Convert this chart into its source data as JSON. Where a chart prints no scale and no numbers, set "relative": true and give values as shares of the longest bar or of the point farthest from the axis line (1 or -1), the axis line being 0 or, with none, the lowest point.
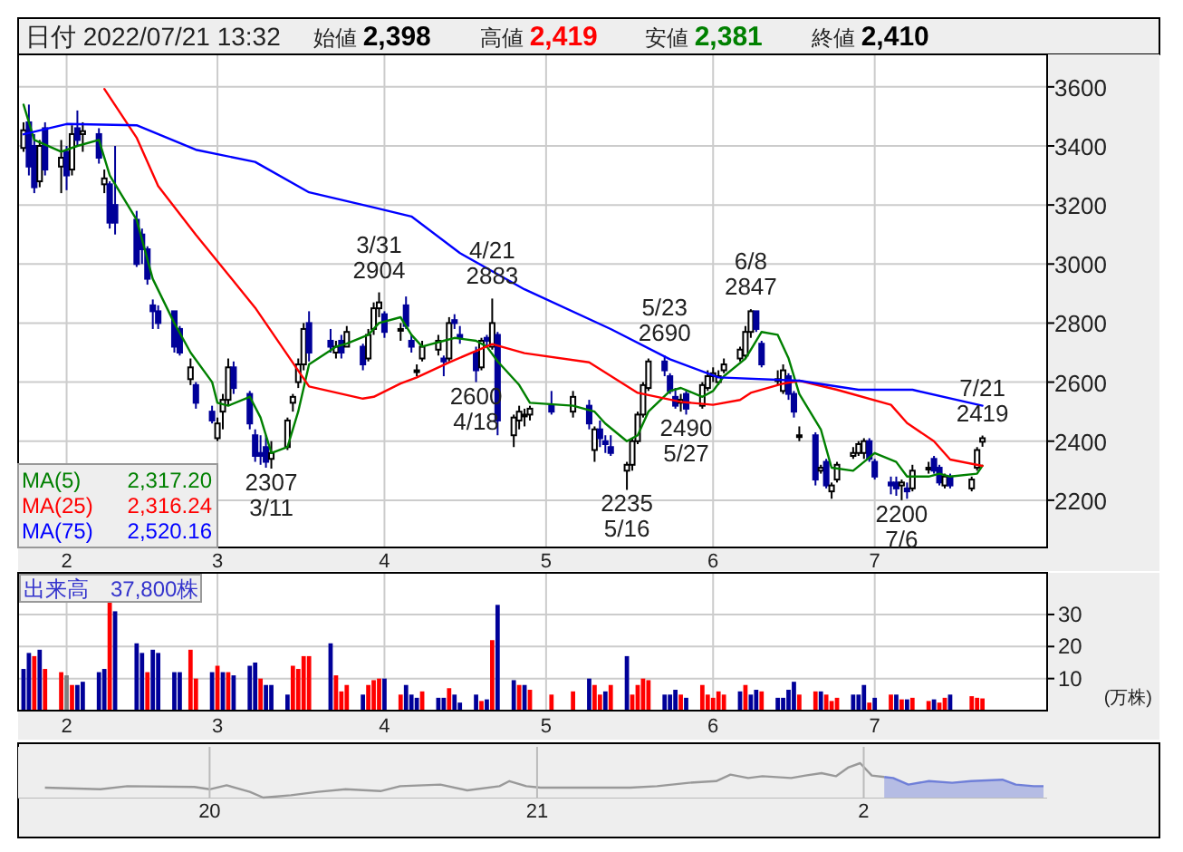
{
  "chart_data": [
    {
      "type": "candlestick",
      "title": "日付 2022/07/21 13:32",
      "grid": true,
      "colors": [
        "#ffffff",
        "#000099",
        "#000099",
        "#ffffff",
        "#000099",
        "#ffffff",
        "#000099",
        "#ffffff",
        "#000099",
        "#ffffff",
        "#000099",
        "#ffffff",
        "#000099",
        "#000099",
        "#000099",
        "#000099",
        "#000099",
        "#000099",
        "#000099",
        "#000099",
        "#000099",
        "#ffffff",
        "#000099",
        "#000099",
        "#ffffff",
        "#ffffff",
        "#ffffff",
        "#000099",
        "#000099",
        "#000099",
        "#000099",
        "#000099",
        "#ffffff",
        "#ffffff",
        "#ffffff",
        "#ffffff",
        "#ffffff",
        "#000099",
        "#000099",
        "#ffffff",
        "#000099",
        "#ffffff",
        "#000099",
        "#ffffff",
        "#ffffff",
        "#ffffff",
        "#000099",
        "#ffffff",
        "#000099",
        "#000099",
        "#ffffff",
        "#ffffff",
        "#ffffff",
        "#000099",
        "#ffffff",
        "#000099",
        "#000099",
        "#000099",
        "#ffffff",
        "#000099",
        "#ffffff",
        "#000099",
        "#ffffff",
        "#ffffff",
        "#ffffff",
        "#ffffff",
        "#000099",
        "#ffffff",
        "#000099",
        "#ffffff",
        "#000099",
        "#000099",
        "#000099",
        "#ffffff",
        "#ffffff",
        "#ffffff",
        "#ffffff",
        "#ffffff",
        "#000099",
        "#000099",
        "#000099",
        "#ffffff",
        "#000099",
        "#ffffff",
        "#ffffff",
        "#ffffff",
        "#ffffff",
        "#ffffff",
        "#ffffff",
        "#ffffff",
        "#ffffff",
        "#000099",
        "#000099",
        "#ffffff",
        "#ffffff",
        "#000099",
        "#000099",
        "#ffffff",
        "#000099",
        "#ffffff",
        "#000099",
        "#ffffff",
        "#ffffff",
        "#ffffff",
        "#ffffff",
        "#ffffff",
        "#000099",
        "#000099",
        "#000099",
        "#000099",
        "#ffffff",
        "#000099",
        "#ffffff",
        "#ffffff",
        "#000099",
        "#000099",
        "#ffffff",
        "#000099",
        "#ffffff",
        "#ffffff",
        "#ffffff"
      ],
      "legend": "bottom left",
      "xlim": [
        "2022-01-23",
        "2022-08-02"
      ],
      "ylim": [
        2040,
        3710
      ],
      "yticks": [
        2200,
        2400,
        2600,
        2800,
        3000,
        3200,
        3400,
        3600
      ],
      "xticks": [
        {
          "value": "2022-02-01",
          "label": "2"
        },
        {
          "value": "2022-03-01",
          "label": "3"
        },
        {
          "value": "2022-04-01",
          "label": "4"
        },
        {
          "value": "2022-05-01",
          "label": "5"
        },
        {
          "value": "2022-06-01",
          "label": "6"
        },
        {
          "value": "2022-07-01",
          "label": "7"
        }
      ],
      "x": [
        "2022-01-24",
        "2022-01-25",
        "2022-01-26",
        "2022-01-27",
        "2022-01-28",
        "2022-01-31",
        "2022-02-01",
        "2022-02-02",
        "2022-02-03",
        "2022-02-04",
        "2022-02-07",
        "2022-02-08",
        "2022-02-09",
        "2022-02-10",
        "2022-02-14",
        "2022-02-15",
        "2022-02-16",
        "2022-02-17",
        "2022-02-18",
        "2022-02-21",
        "2022-02-22",
        "2022-02-24",
        "2022-02-25",
        "2022-02-28",
        "2022-03-01",
        "2022-03-02",
        "2022-03-03",
        "2022-03-04",
        "2022-03-07",
        "2022-03-08",
        "2022-03-09",
        "2022-03-10",
        "2022-03-11",
        "2022-03-14",
        "2022-03-15",
        "2022-03-16",
        "2022-03-17",
        "2022-03-18",
        "2022-03-22",
        "2022-03-23",
        "2022-03-24",
        "2022-03-25",
        "2022-03-28",
        "2022-03-29",
        "2022-03-30",
        "2022-03-31",
        "2022-04-01",
        "2022-04-04",
        "2022-04-05",
        "2022-04-06",
        "2022-04-07",
        "2022-04-08",
        "2022-04-11",
        "2022-04-12",
        "2022-04-13",
        "2022-04-14",
        "2022-04-15",
        "2022-04-18",
        "2022-04-19",
        "2022-04-20",
        "2022-04-21",
        "2022-04-22",
        "2022-04-25",
        "2022-04-26",
        "2022-04-27",
        "2022-04-28",
        "2022-05-02",
        "2022-05-06",
        "2022-05-09",
        "2022-05-10",
        "2022-05-11",
        "2022-05-12",
        "2022-05-13",
        "2022-05-16",
        "2022-05-17",
        "2022-05-18",
        "2022-05-19",
        "2022-05-20",
        "2022-05-23",
        "2022-05-24",
        "2022-05-25",
        "2022-05-26",
        "2022-05-27",
        "2022-05-30",
        "2022-05-31",
        "2022-06-01",
        "2022-06-02",
        "2022-06-03",
        "2022-06-06",
        "2022-06-07",
        "2022-06-08",
        "2022-06-09",
        "2022-06-10",
        "2022-06-13",
        "2022-06-14",
        "2022-06-15",
        "2022-06-16",
        "2022-06-17",
        "2022-06-20",
        "2022-06-21",
        "2022-06-22",
        "2022-06-23",
        "2022-06-24",
        "2022-06-27",
        "2022-06-28",
        "2022-06-29",
        "2022-06-30",
        "2022-07-01",
        "2022-07-04",
        "2022-07-05",
        "2022-07-06",
        "2022-07-07",
        "2022-07-08",
        "2022-07-11",
        "2022-07-12",
        "2022-07-13",
        "2022-07-14",
        "2022-07-15",
        "2022-07-19",
        "2022-07-20",
        "2022-07-21"
      ],
      "ohlc": [
        [
          3393,
          3480,
          3380,
          3453
        ],
        [
          3480,
          3540,
          3300,
          3330
        ],
        [
          3400,
          3440,
          3240,
          3260
        ],
        [
          3280,
          3420,
          3260,
          3400
        ],
        [
          3460,
          3480,
          3300,
          3320
        ],
        [
          3330,
          3420,
          3240,
          3360
        ],
        [
          3380,
          3400,
          3250,
          3300
        ],
        [
          3320,
          3470,
          3300,
          3440
        ],
        [
          3460,
          3520,
          3400,
          3420
        ],
        [
          3440,
          3480,
          3380,
          3450
        ],
        [
          3440,
          3460,
          3340,
          3360
        ],
        [
          3270,
          3320,
          3240,
          3290
        ],
        [
          3270,
          3280,
          3120,
          3140
        ],
        [
          3200,
          3400,
          3100,
          3140
        ],
        [
          3150,
          3180,
          2990,
          3000
        ],
        [
          3100,
          3120,
          3000,
          3050
        ],
        [
          3050,
          3060,
          2930,
          2950
        ],
        [
          2860,
          2880,
          2780,
          2840
        ],
        [
          2840,
          2860,
          2780,
          2800
        ],
        [
          2840,
          2840,
          2700,
          2720
        ],
        [
          2780,
          2790,
          2690,
          2700
        ],
        [
          2610,
          2680,
          2590,
          2650
        ],
        [
          2590,
          2600,
          2510,
          2530
        ],
        [
          2500,
          2520,
          2460,
          2470
        ],
        [
          2410,
          2480,
          2400,
          2460
        ],
        [
          2500,
          2560,
          2440,
          2540
        ],
        [
          2540,
          2680,
          2520,
          2650
        ],
        [
          2650,
          2670,
          2560,
          2580
        ],
        [
          2560,
          2570,
          2440,
          2460
        ],
        [
          2420,
          2440,
          2330,
          2350
        ],
        [
          2360,
          2420,
          2320,
          2350
        ],
        [
          2380,
          2420,
          2310,
          2330
        ],
        [
          2340,
          2400,
          2307,
          2360
        ],
        [
          2380,
          2480,
          2370,
          2470
        ],
        [
          2530,
          2560,
          2500,
          2550
        ],
        [
          2600,
          2680,
          2580,
          2660
        ],
        [
          2660,
          2800,
          2640,
          2780
        ],
        [
          2800,
          2840,
          2670,
          2700
        ],
        [
          2740,
          2780,
          2700,
          2720
        ],
        [
          2700,
          2740,
          2680,
          2720
        ],
        [
          2740,
          2760,
          2680,
          2700
        ],
        [
          2720,
          2790,
          2720,
          2770
        ],
        [
          2720,
          2730,
          2640,
          2660
        ],
        [
          2680,
          2780,
          2670,
          2760
        ],
        [
          2780,
          2870,
          2760,
          2850
        ],
        [
          2850,
          2904,
          2820,
          2870
        ],
        [
          2830,
          2840,
          2750,
          2770
        ],
        [
          2780,
          2800,
          2740,
          2780
        ],
        [
          2860,
          2890,
          2780,
          2790
        ],
        [
          2740,
          2760,
          2700,
          2720
        ],
        [
          2640,
          2660,
          2620,
          2640
        ],
        [
          2680,
          2740,
          2670,
          2720
        ],
        [
          2710,
          2760,
          2690,
          2740
        ],
        [
          2680,
          2690,
          2620,
          2670
        ],
        [
          2680,
          2820,
          2670,
          2800
        ],
        [
          2810,
          2830,
          2780,
          2800
        ],
        [
          2760,
          2790,
          2730,
          2750
        ],
        [
          2700,
          2720,
          2600,
          2640
        ],
        [
          2650,
          2750,
          2640,
          2740
        ],
        [
          2750,
          2760,
          2720,
          2740
        ],
        [
          2720,
          2883,
          2710,
          2800
        ],
        [
          2760,
          2770,
          2420,
          2470
        ],
        [
          2420,
          2490,
          2380,
          2480
        ],
        [
          2470,
          2520,
          2440,
          2500
        ],
        [
          2490,
          2510,
          2450,
          2490
        ],
        [
          2490,
          2520,
          2470,
          2510
        ],
        [
          2520,
          2570,
          2490,
          2500
        ],
        [
          2500,
          2570,
          2480,
          2550
        ],
        [
          2520,
          2540,
          2440,
          2460
        ],
        [
          2370,
          2450,
          2330,
          2440
        ],
        [
          2440,
          2470,
          2380,
          2410
        ],
        [
          2400,
          2420,
          2360,
          2390
        ],
        [
          2380,
          2420,
          2350,
          2360
        ],
        [
          2300,
          2330,
          2235,
          2320
        ],
        [
          2320,
          2410,
          2300,
          2400
        ],
        [
          2400,
          2500,
          2390,
          2490
        ],
        [
          2490,
          2600,
          2480,
          2590
        ],
        [
          2580,
          2680,
          2570,
          2670
        ],
        [
          2670,
          2690,
          2620,
          2640
        ],
        [
          2620,
          2630,
          2560,
          2570
        ],
        [
          2550,
          2580,
          2510,
          2520
        ],
        [
          2530,
          2560,
          2500,
          2540
        ],
        [
          2560,
          2570,
          2490,
          2510
        ],
        [
          2520,
          2600,
          2510,
          2590
        ],
        [
          2580,
          2640,
          2570,
          2620
        ],
        [
          2620,
          2650,
          2600,
          2630
        ],
        [
          2600,
          2640,
          2590,
          2620
        ],
        [
          2640,
          2680,
          2630,
          2660
        ],
        [
          2680,
          2720,
          2670,
          2710
        ],
        [
          2690,
          2790,
          2680,
          2770
        ],
        [
          2770,
          2847,
          2750,
          2840
        ],
        [
          2840,
          2840,
          2770,
          2780
        ],
        [
          2730,
          2740,
          2650,
          2660
        ],
        [
          2610,
          2640,
          2590,
          2610
        ],
        [
          2570,
          2660,
          2560,
          2640
        ],
        [
          2620,
          2630,
          2540,
          2560
        ],
        [
          2560,
          2570,
          2480,
          2500
        ],
        [
          2420,
          2450,
          2400,
          2420
        ],
        [
          2420,
          2430,
          2250,
          2270
        ],
        [
          2300,
          2320,
          2290,
          2310
        ],
        [
          2330,
          2340,
          2240,
          2250
        ],
        [
          2230,
          2260,
          2205,
          2250
        ],
        [
          2270,
          2330,
          2260,
          2320
        ],
        [
          2350,
          2380,
          2340,
          2360
        ],
        [
          2360,
          2400,
          2350,
          2390
        ],
        [
          2360,
          2410,
          2340,
          2400
        ],
        [
          2400,
          2410,
          2330,
          2340
        ],
        [
          2330,
          2340,
          2270,
          2280
        ],
        [
          2260,
          2280,
          2220,
          2250
        ],
        [
          2260,
          2280,
          2215,
          2240
        ],
        [
          2250,
          2270,
          2200,
          2260
        ],
        [
          2240,
          2260,
          2205,
          2230
        ],
        [
          2240,
          2320,
          2230,
          2300
        ],
        [
          2310,
          2330,
          2290,
          2310
        ],
        [
          2340,
          2350,
          2290,
          2300
        ],
        [
          2310,
          2320,
          2250,
          2260
        ],
        [
          2250,
          2290,
          2240,
          2280
        ],
        [
          2280,
          2290,
          2240,
          2250
        ],
        [
          2240,
          2280,
          2230,
          2270
        ],
        [
          2310,
          2380,
          2300,
          2370
        ],
        [
          2398,
          2419,
          2381,
          2410
        ]
      ],
      "series": [
        {
          "name": "MA(5)",
          "type": "line",
          "color": "#008000",
          "x": [
            "2022-01-24",
            "2022-01-26",
            "2022-01-31",
            "2022-02-03",
            "2022-02-07",
            "2022-02-09",
            "2022-02-14",
            "2022-02-17",
            "2022-02-21",
            "2022-02-24",
            "2022-02-28",
            "2022-03-01",
            "2022-03-03",
            "2022-03-07",
            "2022-03-09",
            "2022-03-11",
            "2022-03-14",
            "2022-03-16",
            "2022-03-18",
            "2022-03-23",
            "2022-03-25",
            "2022-03-29",
            "2022-03-31",
            "2022-04-04",
            "2022-04-06",
            "2022-04-08",
            "2022-04-12",
            "2022-04-14",
            "2022-04-18",
            "2022-04-20",
            "2022-04-22",
            "2022-04-26",
            "2022-04-28",
            "2022-05-06",
            "2022-05-10",
            "2022-05-12",
            "2022-05-16",
            "2022-05-18",
            "2022-05-20",
            "2022-05-24",
            "2022-05-26",
            "2022-05-30",
            "2022-06-01",
            "2022-06-03",
            "2022-06-07",
            "2022-06-10",
            "2022-06-13",
            "2022-06-15",
            "2022-06-17",
            "2022-06-21",
            "2022-06-23",
            "2022-06-27",
            "2022-06-29",
            "2022-07-01",
            "2022-07-05",
            "2022-07-07",
            "2022-07-11",
            "2022-07-13",
            "2022-07-15",
            "2022-07-20",
            "2022-07-21"
          ],
          "values": [
            3540,
            3420,
            3380,
            3400,
            3420,
            3300,
            3150,
            2950,
            2800,
            2700,
            2600,
            2530,
            2520,
            2550,
            2480,
            2360,
            2380,
            2500,
            2660,
            2720,
            2730,
            2760,
            2800,
            2820,
            2760,
            2720,
            2740,
            2750,
            2740,
            2720,
            2670,
            2590,
            2530,
            2520,
            2500,
            2460,
            2400,
            2420,
            2500,
            2570,
            2580,
            2550,
            2570,
            2620,
            2680,
            2770,
            2760,
            2680,
            2560,
            2440,
            2310,
            2300,
            2330,
            2360,
            2330,
            2280,
            2280,
            2290,
            2280,
            2290,
            2317
          ]
        },
        {
          "name": "MA(25)",
          "type": "line",
          "color": "#ff0000",
          "x": [
            "2022-02-08",
            "2022-02-14",
            "2022-02-18",
            "2022-02-25",
            "2022-03-08",
            "2022-03-18",
            "2022-03-28",
            "2022-03-30",
            "2022-04-04",
            "2022-04-07",
            "2022-04-13",
            "2022-04-21",
            "2022-04-27",
            "2022-05-09",
            "2022-05-18",
            "2022-05-26",
            "2022-06-01",
            "2022-06-06",
            "2022-06-08",
            "2022-06-14",
            "2022-06-17",
            "2022-06-24",
            "2022-07-04",
            "2022-07-07",
            "2022-07-12",
            "2022-07-15",
            "2022-07-21"
          ],
          "values": [
            3593,
            3428,
            3264,
            3099,
            2852,
            2585,
            2544,
            2550,
            2595,
            2616,
            2667,
            2729,
            2698,
            2667,
            2564,
            2533,
            2523,
            2540,
            2564,
            2595,
            2605,
            2574,
            2523,
            2461,
            2400,
            2338,
            2316
          ]
        },
        {
          "name": "MA(75)",
          "type": "line",
          "color": "#0000ff",
          "x": [
            "2022-01-24",
            "2022-02-01",
            "2022-02-14",
            "2022-02-25",
            "2022-03-08",
            "2022-03-18",
            "2022-03-30",
            "2022-04-06",
            "2022-04-15",
            "2022-04-27",
            "2022-05-13",
            "2022-05-24",
            "2022-06-02",
            "2022-06-17",
            "2022-06-28",
            "2022-07-08",
            "2022-07-21"
          ],
          "values": [
            3439,
            3474,
            3470,
            3387,
            3346,
            3243,
            3192,
            3161,
            3037,
            2914,
            2780,
            2677,
            2616,
            2605,
            2574,
            2574,
            2520
          ]
        }
      ],
      "annotations": [
        "始値 2,398",
        "高値 2,419",
        "安値 2,381",
        "終値 2,410",
        "2,317.20",
        "2,316.24",
        "2,520.16",
        {
          "text": "2307\n3/11",
          "x": "2022-03-11",
          "y": 2307
        },
        {
          "text": "3/31\n2904",
          "x": "2022-03-31",
          "y": 2904
        },
        {
          "text": "2600\n4/18",
          "x": "2022-04-18",
          "y": 2600
        },
        {
          "text": "4/21\n2883",
          "x": "2022-04-21",
          "y": 2883
        },
        {
          "text": "2235\n5/16",
          "x": "2022-05-16",
          "y": 2235
        },
        {
          "text": "5/23\n2690",
          "x": "2022-05-23",
          "y": 2690
        },
        {
          "text": "2490\n5/27",
          "x": "2022-05-27",
          "y": 2490
        },
        {
          "text": "6/8\n2847",
          "x": "2022-06-08",
          "y": 2847
        },
        {
          "text": "2200\n7/6",
          "x": "2022-07-06",
          "y": 2200
        },
        {
          "text": "7/21\n2419",
          "x": "2022-07-21",
          "y": 2419
        }
      ]
    },
    {
      "type": "bar",
      "title": "出来高　37,800株",
      "ylabel": "(万株)",
      "grid": true,
      "ylim": [
        0,
        43
      ],
      "yticks": [
        10,
        20,
        30
      ],
      "xlim": [
        "2022-01-23",
        "2022-08-02"
      ],
      "xticks": [
        {
          "value": "2022-02-01",
          "label": "2"
        },
        {
          "value": "2022-03-01",
          "label": "3"
        },
        {
          "value": "2022-04-01",
          "label": "4"
        },
        {
          "value": "2022-05-01",
          "label": "5"
        },
        {
          "value": "2022-06-01",
          "label": "6"
        },
        {
          "value": "2022-07-01",
          "label": "7"
        }
      ],
      "x": [
        "2022-01-24",
        "2022-01-25",
        "2022-01-26",
        "2022-01-27",
        "2022-01-28",
        "2022-01-31",
        "2022-02-01",
        "2022-02-02",
        "2022-02-03",
        "2022-02-04",
        "2022-02-07",
        "2022-02-08",
        "2022-02-09",
        "2022-02-10",
        "2022-02-14",
        "2022-02-15",
        "2022-02-16",
        "2022-02-17",
        "2022-02-18",
        "2022-02-21",
        "2022-02-22",
        "2022-02-24",
        "2022-02-25",
        "2022-02-28",
        "2022-03-01",
        "2022-03-02",
        "2022-03-03",
        "2022-03-04",
        "2022-03-07",
        "2022-03-08",
        "2022-03-09",
        "2022-03-10",
        "2022-03-11",
        "2022-03-14",
        "2022-03-15",
        "2022-03-16",
        "2022-03-17",
        "2022-03-18",
        "2022-03-22",
        "2022-03-23",
        "2022-03-24",
        "2022-03-25",
        "2022-03-28",
        "2022-03-29",
        "2022-03-30",
        "2022-03-31",
        "2022-04-01",
        "2022-04-04",
        "2022-04-05",
        "2022-04-06",
        "2022-04-07",
        "2022-04-08",
        "2022-04-11",
        "2022-04-12",
        "2022-04-13",
        "2022-04-14",
        "2022-04-15",
        "2022-04-18",
        "2022-04-19",
        "2022-04-20",
        "2022-04-21",
        "2022-04-22",
        "2022-04-25",
        "2022-04-26",
        "2022-04-27",
        "2022-04-28",
        "2022-05-02",
        "2022-05-06",
        "2022-05-09",
        "2022-05-10",
        "2022-05-11",
        "2022-05-12",
        "2022-05-13",
        "2022-05-16",
        "2022-05-17",
        "2022-05-18",
        "2022-05-19",
        "2022-05-20",
        "2022-05-23",
        "2022-05-24",
        "2022-05-25",
        "2022-05-26",
        "2022-05-27",
        "2022-05-30",
        "2022-05-31",
        "2022-06-01",
        "2022-06-02",
        "2022-06-03",
        "2022-06-06",
        "2022-06-07",
        "2022-06-08",
        "2022-06-09",
        "2022-06-10",
        "2022-06-13",
        "2022-06-14",
        "2022-06-15",
        "2022-06-16",
        "2022-06-17",
        "2022-06-20",
        "2022-06-21",
        "2022-06-22",
        "2022-06-23",
        "2022-06-24",
        "2022-06-27",
        "2022-06-28",
        "2022-06-29",
        "2022-06-30",
        "2022-07-01",
        "2022-07-04",
        "2022-07-05",
        "2022-07-06",
        "2022-07-07",
        "2022-07-08",
        "2022-07-11",
        "2022-07-12",
        "2022-07-13",
        "2022-07-14",
        "2022-07-15",
        "2022-07-19",
        "2022-07-20",
        "2022-07-21"
      ],
      "values": [
        13,
        18,
        17,
        19,
        13,
        12,
        11,
        8,
        8,
        9,
        12,
        13,
        35,
        31,
        21,
        18,
        12,
        19,
        18,
        12,
        12,
        19,
        10,
        12,
        14,
        12,
        12,
        11,
        14,
        15,
        10,
        8,
        8,
        5,
        14,
        13,
        17,
        17,
        21,
        11,
        6,
        8,
        5,
        8,
        9.5,
        10,
        10,
        5,
        8,
        5,
        4,
        6,
        4,
        4,
        7,
        5,
        2.5,
        5,
        3,
        3.5,
        22,
        33,
        9.5,
        8,
        8,
        6.5,
        5,
        6,
        10,
        8,
        5,
        6,
        8,
        17,
        5,
        8,
        10,
        9.5,
        5,
        5,
        6.5,
        5,
        4,
        8,
        5,
        4,
        6,
        5,
        6,
        8,
        5,
        6.5,
        6,
        4,
        4,
        6.5,
        9,
        5,
        6,
        6,
        5,
        3,
        4,
        5,
        5,
        8,
        2.5,
        4,
        5,
        5,
        3.5,
        3.5,
        4,
        3,
        3.5,
        2.5,
        4,
        5,
        4.5,
        4,
        3.8
      ],
      "colors": [
        "#000099",
        "#000099",
        "#ff0000",
        "#000099",
        "#ff0000",
        "#ff0000",
        "#808080",
        "#ff0000",
        "#000099",
        "#000099",
        "#000099",
        "#000099",
        "#ff0000",
        "#000099",
        "#000099",
        "#000099",
        "#ff0000",
        "#000099",
        "#000099",
        "#000099",
        "#000099",
        "#ff0000",
        "#ff0000",
        "#000099",
        "#ff0000",
        "#000099",
        "#ff0000",
        "#000099",
        "#000099",
        "#000099",
        "#ff0000",
        "#000099",
        "#000099",
        "#000099",
        "#ff0000",
        "#ff0000",
        "#ff0000",
        "#ff0000",
        "#000099",
        "#ff0000",
        "#ff0000",
        "#ff0000",
        "#000099",
        "#ff0000",
        "#ff0000",
        "#ff0000",
        "#000099",
        "#ff0000",
        "#000099",
        "#000099",
        "#000099",
        "#ff0000",
        "#000099",
        "#000099",
        "#ff0000",
        "#000099",
        "#000099",
        "#000099",
        "#ff0000",
        "#000099",
        "#ff0000",
        "#000099",
        "#000099",
        "#ff0000",
        "#000099",
        "#ff0000",
        "#ff0000",
        "#ff0000",
        "#000099",
        "#ff0000",
        "#ff0000",
        "#000099",
        "#ff0000",
        "#000099",
        "#ff0000",
        "#ff0000",
        "#ff0000",
        "#ff0000",
        "#000099",
        "#000099",
        "#000099",
        "#ff0000",
        "#000099",
        "#ff0000",
        "#ff0000",
        "#ff0000",
        "#ff0000",
        "#ff0000",
        "#000099",
        "#ff0000",
        "#000099",
        "#000099",
        "#ff0000",
        "#000099",
        "#000099",
        "#000099",
        "#000099",
        "#ff0000",
        "#ff0000",
        "#000099",
        "#ff0000",
        "#ff0000",
        "#ff0000",
        "#000099",
        "#000099",
        "#000099",
        "#ff0000",
        "#000099",
        "#ff0000",
        "#000099",
        "#ff0000",
        "#000099",
        "#ff0000",
        "#ff0000",
        "#000099",
        "#ff0000",
        "#ff0000",
        "#000099",
        "#ff0000",
        "#ff0000",
        "#ff0000"
      ]
    },
    {
      "type": "line",
      "relative": true,
      "grid": "x",
      "xlim": [
        "2019-06-01",
        "2022-07-25"
      ],
      "xticks": [
        {
          "value": "2020-01-01",
          "label": "20"
        },
        {
          "value": "2021-01-01",
          "label": "21"
        },
        {
          "value": "2022-01-01",
          "label": "2"
        }
      ],
      "series": [
        {
          "type": "line",
          "color": "#999999",
          "x": [
            "2019-07-01",
            "2019-09-01",
            "2019-10-01",
            "2019-12-15",
            "2020-01-01",
            "2020-01-20",
            "2020-02-15",
            "2020-03-01",
            "2020-04-01",
            "2020-05-01",
            "2020-06-01",
            "2020-07-10",
            "2020-08-01",
            "2020-09-15",
            "2020-10-15",
            "2020-11-20",
            "2020-12-01",
            "2020-12-20",
            "2021-01-05",
            "2021-02-28",
            "2021-04-15",
            "2021-05-15",
            "2021-06-20",
            "2021-07-20",
            "2021-08-05",
            "2021-08-25",
            "2021-09-10",
            "2021-10-12",
            "2021-10-28",
            "2021-11-15",
            "2021-12-01",
            "2021-12-15",
            "2021-12-28",
            "2022-01-10",
            "2022-01-24"
          ],
          "values": [
            0.29,
            0.24,
            0.33,
            0.31,
            0.24,
            0.36,
            0.17,
            0,
            0.07,
            0.17,
            0.24,
            0.19,
            0.33,
            0.38,
            0.21,
            0.33,
            0.48,
            0.33,
            0.29,
            0.29,
            0.29,
            0.33,
            0.43,
            0.48,
            0.67,
            0.57,
            0.62,
            0.57,
            0.64,
            0.71,
            0.62,
            0.88,
            1,
            0.64,
            0.6
          ]
        },
        {
          "type": "area",
          "color": "#6f7fd8",
          "x": [
            "2022-01-24",
            "2022-02-03",
            "2022-02-20",
            "2022-03-15",
            "2022-04-10",
            "2022-05-01",
            "2022-06-05",
            "2022-06-20",
            "2022-07-10",
            "2022-07-21"
          ],
          "values": [
            0.6,
            0.57,
            0.38,
            0.48,
            0.43,
            0.48,
            0.52,
            0.38,
            0.33,
            0.33
          ]
        }
      ]
    }
  ]
}
